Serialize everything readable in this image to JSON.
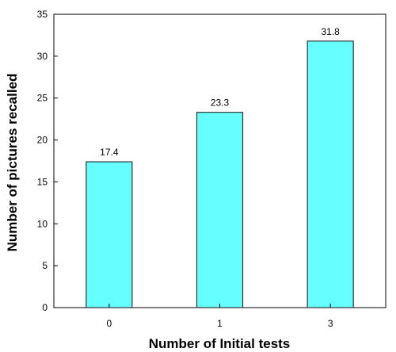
{
  "chart_data": {
    "type": "bar",
    "categories": [
      "0",
      "1",
      "3"
    ],
    "values": [
      17.4,
      23.3,
      31.8
    ],
    "value_labels": [
      "17.4",
      "23.3",
      "31.8"
    ],
    "xlabel": "Number of Initial tests",
    "ylabel": "Number of pictures recalled",
    "ylim": [
      0,
      35
    ],
    "yticks": [
      "0",
      "5",
      "10",
      "15",
      "20",
      "25",
      "30",
      "35"
    ],
    "grid": false,
    "legend": "none",
    "bar_color": "#66ffff",
    "bar_edge_color": "#333333"
  }
}
